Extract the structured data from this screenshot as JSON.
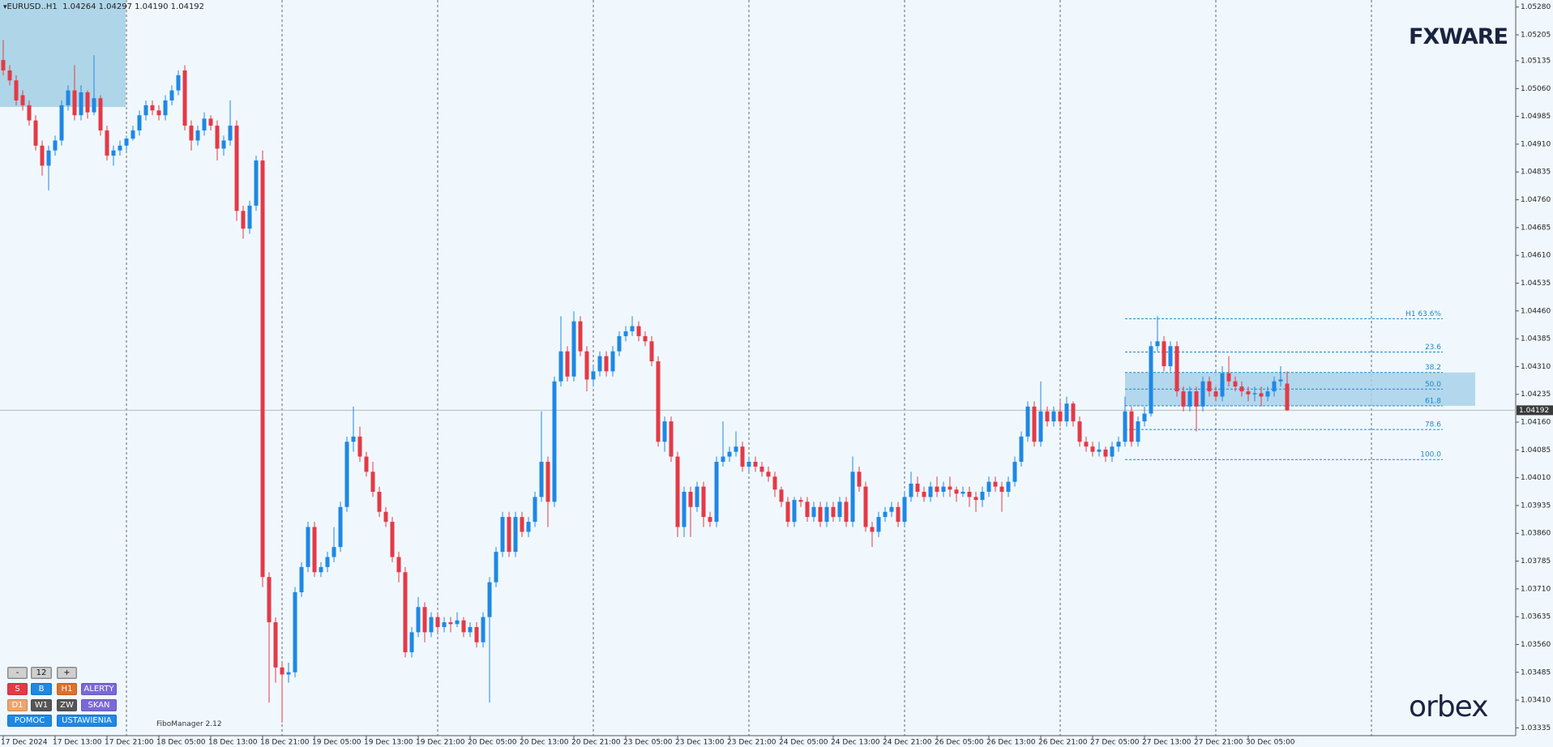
{
  "header": "EURUSD..H1  1.04264 1.04297 1.04190 1.04192",
  "logo_top": "FXWARE",
  "logo_bottom": "orbex",
  "indicator": "FiboManager 2.12",
  "panel": {
    "rows": [
      [
        "-",
        "12",
        "+"
      ],
      [
        "S",
        "B",
        "H1",
        "ALERTY"
      ],
      [
        "D1",
        "W1",
        "ZW",
        "SKAN"
      ],
      [
        "POMOC",
        "USTAWIENIA"
      ]
    ]
  },
  "chart_data": {
    "type": "candlestick",
    "up_color": "#1e88e5",
    "down_color": "#e53946",
    "ylim": [
      1.03314,
      1.05299
    ],
    "yticks": [
      {
        "value": 1.0528,
        "label": "1.05280"
      },
      1.05205,
      1.05135,
      {
        "value": 1.0506,
        "label": "1.05060"
      },
      1.04985,
      {
        "value": 1.0491,
        "label": "1.04910"
      },
      1.04835,
      {
        "value": 1.0476,
        "label": "1.04760"
      },
      1.04685,
      {
        "value": 1.0461,
        "label": "1.04610"
      },
      1.04535,
      {
        "value": 1.0446,
        "label": "1.04460"
      },
      1.04385,
      {
        "value": 1.0431,
        "label": "1.04310"
      },
      1.04235,
      {
        "value": 1.0416,
        "label": "1.04160"
      },
      1.04085,
      {
        "value": 1.0401,
        "label": "1.04010"
      },
      1.03935,
      {
        "value": 1.0386,
        "label": "1.03860"
      },
      1.03785,
      {
        "value": 1.0371,
        "label": "1.03710"
      },
      1.03635,
      {
        "value": 1.0356,
        "label": "1.03560"
      },
      1.03485,
      {
        "value": 1.0341,
        "label": "1.03410"
      },
      1.03335
    ],
    "categories": [
      "17 Dec 2024",
      null,
      null,
      null,
      null,
      null,
      null,
      null,
      "17 Dec 13:00",
      null,
      null,
      null,
      null,
      null,
      null,
      null,
      "17 Dec 21:00",
      null,
      null,
      null,
      null,
      null,
      null,
      null,
      "18 Dec 05:00",
      null,
      null,
      null,
      null,
      null,
      null,
      null,
      "18 Dec 13:00",
      null,
      null,
      null,
      null,
      null,
      null,
      null,
      "18 Dec 21:00",
      null,
      null,
      null,
      null,
      null,
      null,
      null,
      "19 Dec 05:00",
      null,
      null,
      null,
      null,
      null,
      null,
      null,
      "19 Dec 13:00",
      null,
      null,
      null,
      null,
      null,
      null,
      null,
      "19 Dec 21:00",
      null,
      null,
      null,
      null,
      null,
      null,
      null,
      "20 Dec 05:00",
      null,
      null,
      null,
      null,
      null,
      null,
      null,
      "20 Dec 13:00",
      null,
      null,
      null,
      null,
      null,
      null,
      null,
      "20 Dec 21:00",
      null,
      null,
      null,
      null,
      null,
      null,
      null,
      "23 Dec 05:00",
      null,
      null,
      null,
      null,
      null,
      null,
      null,
      "23 Dec 13:00",
      null,
      null,
      null,
      null,
      null,
      null,
      null,
      "23 Dec 21:00",
      null,
      null,
      null,
      null,
      null,
      null,
      null,
      "24 Dec 05:00",
      null,
      null,
      null,
      null,
      null,
      null,
      null,
      "24 Dec 13:00",
      null,
      null,
      null,
      null,
      null,
      null,
      null,
      "24 Dec 21:00",
      null,
      null,
      null,
      null,
      null,
      null,
      null,
      "26 Dec 05:00",
      null,
      null,
      null,
      null,
      null,
      null,
      null,
      "26 Dec 13:00",
      null,
      null,
      null,
      null,
      null,
      null,
      null,
      "26 Dec 21:00",
      null,
      null,
      null,
      null,
      null,
      null,
      null,
      "27 Dec 05:00",
      null,
      null,
      null,
      null,
      null,
      null,
      null,
      "27 Dec 13:00",
      null,
      null,
      null,
      null,
      null,
      null,
      null,
      "27 Dec 21:00",
      null,
      null,
      null,
      null,
      null,
      null,
      null,
      "30 Dec 05:00",
      null,
      null,
      null,
      null,
      null,
      null
    ],
    "open": [
      1.05137,
      1.05109,
      1.05082,
      1.05042,
      1.05015,
      1.04974,
      1.04906,
      1.04852,
      1.04893,
      1.0492,
      1.05015,
      1.05055,
      1.04988,
      1.0505,
      1.04996,
      1.05034,
      1.04947,
      1.04879,
      1.04893,
      1.04906,
      1.04925,
      1.04947,
      1.04988,
      1.05015,
      1.05001,
      1.04988,
      1.05028,
      1.05055,
      1.05109,
      1.0496,
      1.0492,
      1.04947,
      1.04979,
      1.0496,
      1.04898,
      1.0492,
      1.0496,
      1.0473,
      1.04682,
      1.04744,
      1.04866,
      1.03742,
      1.0362,
      1.03498,
      1.03479,
      1.03485,
      1.03701,
      1.03769,
      1.03877,
      1.03755,
      1.03769,
      1.03796,
      1.03823,
      1.03931,
      1.04107,
      1.04121,
      1.04067,
      1.04026,
      1.03972,
      1.03918,
      1.03891,
      1.03796,
      1.03755,
      1.03539,
      1.03593,
      1.03661,
      1.03593,
      1.03634,
      1.03607,
      1.0362,
      1.03615,
      1.03625,
      1.03593,
      1.03607,
      1.03566,
      1.03634,
      1.03728,
      1.0381,
      1.03904,
      1.0381,
      1.03904,
      1.03864,
      1.03891,
      1.03958,
      1.04053,
      1.03945,
      1.0427,
      1.04351,
      1.04283,
      1.04432,
      1.04351,
      1.04275,
      1.04297,
      1.04338,
      1.04297,
      1.04351,
      1.04392,
      1.04405,
      1.04419,
      1.04392,
      1.04378,
      1.04324,
      1.04107,
      1.04162,
      1.04067,
      1.03877,
      1.03972,
      1.03931,
      1.03986,
      1.03904,
      1.03891,
      1.04053,
      1.04067,
      1.0408,
      1.04094,
      1.0404,
      1.04053,
      1.0404,
      1.04026,
      1.04013,
      1.03978,
      1.03945,
      1.03891,
      1.0395,
      1.03945,
      1.03904,
      1.03931,
      1.03891,
      1.03931,
      1.03904,
      1.03945,
      1.03891,
      1.04026,
      1.03986,
      1.03877,
      1.03864,
      1.03904,
      1.03918,
      1.03931,
      1.03891,
      1.03958,
      1.03994,
      1.03972,
      1.03958,
      1.03986,
      1.03972,
      1.03986,
      1.03978,
      1.03967,
      1.03972,
      1.03958,
      1.0395,
      1.03972,
      1.03999,
      1.03986,
      1.03972,
      1.03999,
      1.04053,
      1.04121,
      1.04202,
      1.04107,
      1.04189,
      1.04162,
      1.04189,
      1.04162,
      1.0421,
      1.04162,
      1.04107,
      1.04094,
      1.0408,
      1.04086,
      1.04067,
      1.04094,
      1.04107,
      1.04189,
      1.04107,
      1.04162,
      1.04183,
      1.04365,
      1.04378,
      1.04311,
      1.04365,
      1.04243,
      1.04202,
      1.04243,
      1.04202,
      1.0427,
      1.04243,
      1.04229,
      1.04292,
      1.0427,
      1.04256,
      1.04243,
      1.04235,
      1.04238,
      1.04229,
      1.04243,
      1.0427,
      1.04264
    ],
    "high": [
      1.05191,
      1.05123,
      1.05096,
      1.05055,
      1.05028,
      1.04988,
      1.0492,
      1.04906,
      1.04933,
      1.05028,
      1.05069,
      1.05123,
      1.05069,
      1.05055,
      1.0515,
      1.05042,
      1.0496,
      1.04906,
      1.0492,
      1.04933,
      1.0496,
      1.05001,
      1.05028,
      1.05028,
      1.05015,
      1.05042,
      1.05069,
      1.05109,
      1.05123,
      1.04974,
      1.0496,
      1.04996,
      1.04988,
      1.04974,
      1.04933,
      1.05028,
      1.04974,
      1.04744,
      1.04757,
      1.04879,
      1.04893,
      1.03755,
      1.03633,
      1.03511,
      1.03511,
      1.03715,
      1.03782,
      1.03891,
      1.03891,
      1.03782,
      1.0381,
      1.03877,
      1.03945,
      1.04121,
      1.04202,
      1.04148,
      1.0408,
      1.04053,
      1.03986,
      1.03931,
      1.03904,
      1.0381,
      1.03769,
      1.03607,
      1.03688,
      1.03674,
      1.03647,
      1.03647,
      1.03634,
      1.03634,
      1.03647,
      1.03634,
      1.0362,
      1.0362,
      1.03647,
      1.03742,
      1.03823,
      1.03918,
      1.03918,
      1.03918,
      1.03918,
      1.03904,
      1.03972,
      1.04189,
      1.04067,
      1.04283,
      1.04446,
      1.04365,
      1.04459,
      1.04446,
      1.04365,
      1.04311,
      1.04351,
      1.04351,
      1.04365,
      1.04405,
      1.04419,
      1.04446,
      1.04432,
      1.04405,
      1.04392,
      1.04338,
      1.04175,
      1.04175,
      1.0408,
      1.03986,
      1.03986,
      1.03999,
      1.03999,
      1.03918,
      1.04067,
      1.04162,
      1.04094,
      1.04135,
      1.04107,
      1.04067,
      1.04067,
      1.04053,
      1.0404,
      1.04026,
      1.03986,
      1.03958,
      1.03958,
      1.03958,
      1.03958,
      1.03945,
      1.03945,
      1.03945,
      1.03945,
      1.03958,
      1.03958,
      1.04067,
      1.0404,
      1.03999,
      1.03891,
      1.03918,
      1.03931,
      1.03945,
      1.03945,
      1.03972,
      1.04026,
      1.04013,
      1.03986,
      1.03999,
      1.04013,
      1.03999,
      1.04013,
      1.03986,
      1.03986,
      1.03986,
      1.03972,
      1.03986,
      1.04013,
      1.04013,
      1.03999,
      1.04013,
      1.04067,
      1.04135,
      1.04216,
      1.04216,
      1.0427,
      1.04202,
      1.04202,
      1.04216,
      1.04229,
      1.04216,
      1.04175,
      1.04121,
      1.04107,
      1.04107,
      1.04094,
      1.04107,
      1.04121,
      1.04229,
      1.04202,
      1.04175,
      1.04202,
      1.04378,
      1.04446,
      1.04392,
      1.04378,
      1.04378,
      1.04256,
      1.04256,
      1.04256,
      1.04283,
      1.04283,
      1.04256,
      1.04311,
      1.04338,
      1.04283,
      1.0427,
      1.04256,
      1.04256,
      1.04256,
      1.04256,
      1.04283,
      1.04311,
      1.04297
    ],
    "low": [
      1.05096,
      1.05069,
      1.05015,
      1.05001,
      1.0496,
      1.04893,
      1.04825,
      1.04785,
      1.04879,
      1.04906,
      1.05001,
      1.04974,
      1.04974,
      1.04979,
      1.04988,
      1.04933,
      1.04866,
      1.04852,
      1.04879,
      1.04893,
      1.0492,
      1.04933,
      1.04974,
      1.04988,
      1.04974,
      1.04974,
      1.05015,
      1.05042,
      1.04947,
      1.04893,
      1.04906,
      1.04933,
      1.04947,
      1.04866,
      1.04879,
      1.04906,
      1.04703,
      1.04655,
      1.04668,
      1.0473,
      1.03715,
      1.03403,
      1.03457,
      1.03349,
      1.03457,
      1.03471,
      1.03688,
      1.03755,
      1.03742,
      1.03742,
      1.03755,
      1.03782,
      1.0381,
      1.03918,
      1.0408,
      1.04053,
      1.04013,
      1.03958,
      1.03904,
      1.03877,
      1.03782,
      1.03728,
      1.03525,
      1.03525,
      1.0358,
      1.03566,
      1.0358,
      1.03593,
      1.03593,
      1.03593,
      1.03607,
      1.0358,
      1.0358,
      1.03552,
      1.03552,
      1.03403,
      1.03715,
      1.03796,
      1.03796,
      1.03796,
      1.0385,
      1.0385,
      1.03877,
      1.03945,
      1.03877,
      1.03931,
      1.04256,
      1.0427,
      1.0427,
      1.04338,
      1.04243,
      1.04256,
      1.04283,
      1.04283,
      1.04283,
      1.04338,
      1.04378,
      1.04392,
      1.04378,
      1.04365,
      1.04311,
      1.04094,
      1.0408,
      1.04053,
      1.0385,
      1.0385,
      1.0385,
      1.03918,
      1.03877,
      1.03877,
      1.03877,
      1.0404,
      1.04053,
      1.04067,
      1.04026,
      1.04026,
      1.04026,
      1.04013,
      1.03999,
      1.03958,
      1.03931,
      1.03877,
      1.03877,
      1.03931,
      1.03891,
      1.03891,
      1.03877,
      1.03877,
      1.03891,
      1.03891,
      1.03877,
      1.03877,
      1.03972,
      1.03864,
      1.03823,
      1.0385,
      1.03891,
      1.03904,
      1.03877,
      1.03877,
      1.03945,
      1.03958,
      1.03945,
      1.03945,
      1.03958,
      1.03958,
      1.03958,
      1.03945,
      1.03958,
      1.03931,
      1.03918,
      1.03931,
      1.03958,
      1.03972,
      1.03918,
      1.03958,
      1.03986,
      1.0404,
      1.04107,
      1.04094,
      1.04094,
      1.04148,
      1.04148,
      1.04148,
      1.04148,
      1.04148,
      1.04094,
      1.0408,
      1.04067,
      1.04067,
      1.04053,
      1.04053,
      1.0408,
      1.04094,
      1.04094,
      1.04094,
      1.04148,
      1.04175,
      1.04351,
      1.04297,
      1.04297,
      1.04229,
      1.04189,
      1.04189,
      1.04135,
      1.04189,
      1.04229,
      1.04216,
      1.04216,
      1.04256,
      1.04243,
      1.04229,
      1.04216,
      1.04216,
      1.04202,
      1.04216,
      1.04229,
      1.04256,
      1.0419
    ],
    "close": [
      1.05109,
      1.05082,
      1.05028,
      1.05015,
      1.04974,
      1.04906,
      1.04852,
      1.04893,
      1.0492,
      1.05015,
      1.05055,
      1.04988,
      1.0505,
      1.04996,
      1.05034,
      1.04947,
      1.04879,
      1.04893,
      1.04906,
      1.04925,
      1.04947,
      1.04988,
      1.05015,
      1.05001,
      1.04988,
      1.05028,
      1.05055,
      1.05096,
      1.0496,
      1.0492,
      1.04947,
      1.04979,
      1.0496,
      1.04898,
      1.0492,
      1.0496,
      1.0473,
      1.04682,
      1.04744,
      1.04866,
      1.03742,
      1.0362,
      1.03498,
      1.03479,
      1.03485,
      1.03701,
      1.03769,
      1.03877,
      1.03755,
      1.03769,
      1.03796,
      1.03823,
      1.03931,
      1.04107,
      1.04121,
      1.04067,
      1.04026,
      1.03972,
      1.03918,
      1.03891,
      1.03796,
      1.03755,
      1.03539,
      1.03593,
      1.03661,
      1.03593,
      1.03634,
      1.03607,
      1.0362,
      1.03615,
      1.03625,
      1.03593,
      1.03607,
      1.03566,
      1.03634,
      1.03728,
      1.0381,
      1.03904,
      1.0381,
      1.03904,
      1.03864,
      1.03891,
      1.03958,
      1.04053,
      1.03945,
      1.0427,
      1.04351,
      1.04283,
      1.04432,
      1.04351,
      1.04275,
      1.04297,
      1.04338,
      1.04297,
      1.04351,
      1.04392,
      1.04405,
      1.04419,
      1.04392,
      1.04378,
      1.04324,
      1.04107,
      1.04162,
      1.04067,
      1.03877,
      1.03972,
      1.03931,
      1.03986,
      1.03904,
      1.03891,
      1.04053,
      1.04067,
      1.0408,
      1.04094,
      1.0404,
      1.04053,
      1.0404,
      1.04026,
      1.04013,
      1.03978,
      1.03945,
      1.03891,
      1.0395,
      1.03945,
      1.03904,
      1.03931,
      1.03891,
      1.03931,
      1.03904,
      1.03945,
      1.03891,
      1.04026,
      1.03986,
      1.03877,
      1.03864,
      1.03904,
      1.03918,
      1.03931,
      1.03891,
      1.03958,
      1.03994,
      1.03972,
      1.03958,
      1.03986,
      1.03972,
      1.03986,
      1.03978,
      1.03967,
      1.03972,
      1.03958,
      1.0395,
      1.03972,
      1.03999,
      1.03986,
      1.03972,
      1.03999,
      1.04053,
      1.04121,
      1.04202,
      1.04107,
      1.04189,
      1.04162,
      1.04189,
      1.04162,
      1.0421,
      1.04162,
      1.04107,
      1.04094,
      1.0408,
      1.04086,
      1.04067,
      1.04094,
      1.04107,
      1.04189,
      1.04107,
      1.04162,
      1.04183,
      1.04365,
      1.04378,
      1.04311,
      1.04365,
      1.04243,
      1.04202,
      1.04243,
      1.04202,
      1.0427,
      1.04243,
      1.04229,
      1.04292,
      1.0427,
      1.04256,
      1.04243,
      1.04235,
      1.04238,
      1.04229,
      1.04243,
      1.0427,
      1.04275,
      1.04192
    ],
    "fibo": {
      "color": "#1e88c8",
      "levels": [
        {
          "label": "H1 63.6%",
          "value": 1.04439
        },
        {
          "label": "23.6",
          "value": 1.04349
        },
        {
          "label": "38.2",
          "value": 1.04294
        },
        {
          "label": "50.0",
          "value": 1.04249
        },
        {
          "label": "61.8",
          "value": 1.04204
        },
        {
          "label": "78.6",
          "value": 1.0414
        },
        {
          "label": "100.0",
          "value": 1.04059
        }
      ]
    }
  }
}
